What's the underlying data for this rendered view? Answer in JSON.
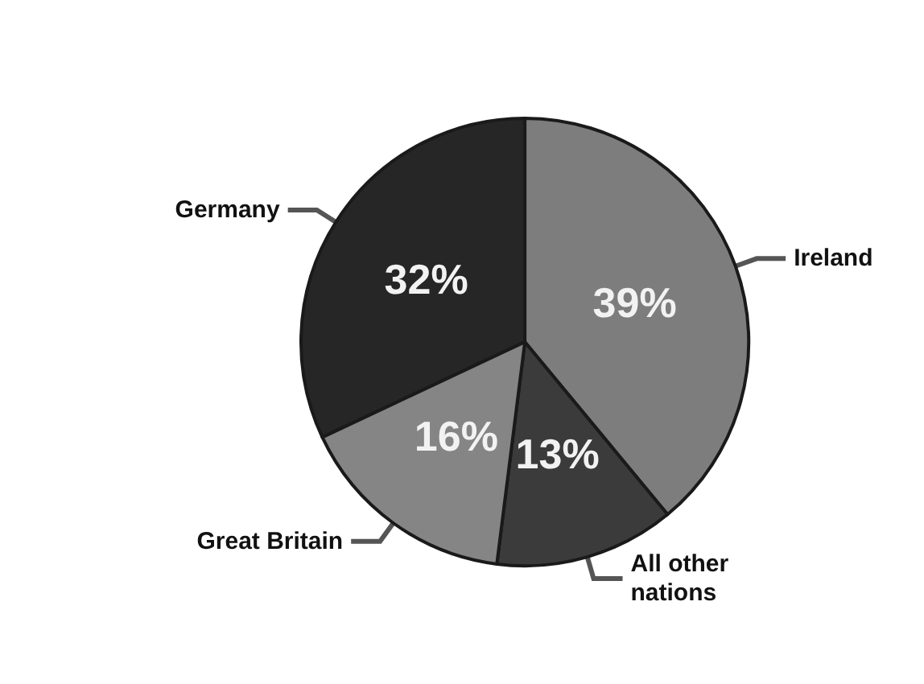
{
  "chart_data": {
    "type": "pie",
    "categories": [
      "Germany",
      "Ireland",
      "All other\nnations",
      "Great Britain"
    ],
    "values": [
      32,
      39,
      13,
      16
    ],
    "colors": [
      "#262626",
      "#7d7d7d",
      "#3b3b3b",
      "#858585"
    ],
    "value_labels": [
      "32%",
      "39%",
      "13%",
      "16%"
    ],
    "legend": false
  }
}
